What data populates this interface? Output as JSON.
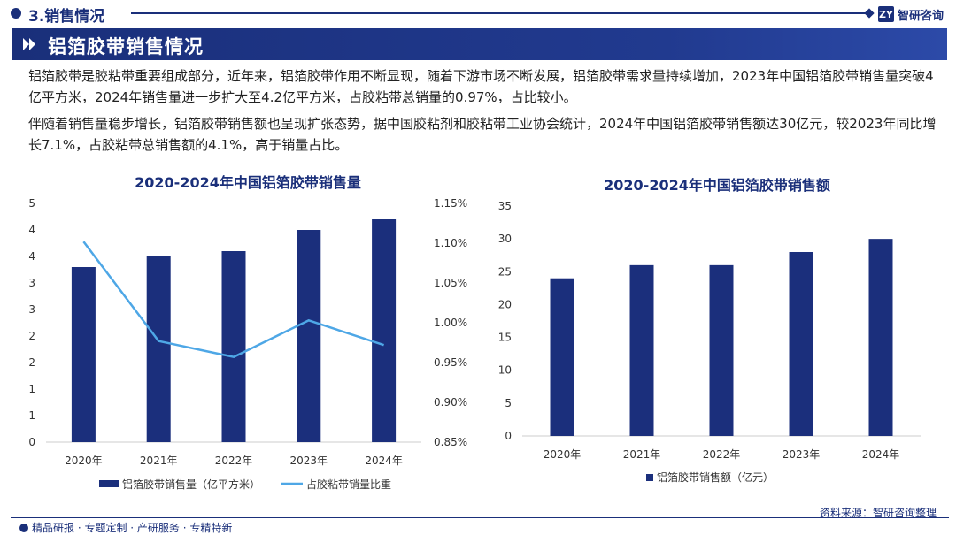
{
  "header": {
    "section_title": "3.销售情况",
    "logo_mark": "ZY",
    "logo_text": "智研咨询"
  },
  "banner": {
    "title": "铝箔胶带销售情况"
  },
  "paragraphs": [
    "铝箔胶带是胶粘带重要组成部分，近年来，铝箔胶带作用不断显现，随着下游市场不断发展，铝箔胶带需求量持续增加，2023年中国铝箔胶带销售量突破4亿平方米，2024年销售量进一步扩大至4.2亿平方米，占胶粘带总销量的0.97%，占比较小。",
    "伴随着销售量稳步增长，铝箔胶带销售额也呈现扩张态势，据中国胶粘剂和胶粘带工业协会统计，2024年中国铝箔胶带销售额达30亿元，较2023年同比增长7.1%，占胶粘带总销售额的4.1%，高于销量占比。"
  ],
  "chart_data": [
    {
      "type": "bar+line",
      "title": "2020-2024年中国铝箔胶带销售量",
      "categories": [
        "2020年",
        "2021年",
        "2022年",
        "2023年",
        "2024年"
      ],
      "series": [
        {
          "name": "铝箔胶带销售量（亿平方米）",
          "kind": "bar",
          "axis": "left",
          "values": [
            3.3,
            3.5,
            3.6,
            4.0,
            4.2
          ]
        },
        {
          "name": "占胶粘带销量比重",
          "kind": "line",
          "axis": "right",
          "values": [
            1.102,
            0.977,
            0.957,
            1.003,
            0.972
          ]
        }
      ],
      "left_axis": {
        "min": 0,
        "max": 4.5,
        "ticks": [
          0,
          0.5,
          1,
          1.5,
          2,
          2.5,
          3,
          3.5,
          4,
          4.5
        ],
        "tick_labels": [
          "0",
          "1",
          "1",
          "2",
          "2",
          "3",
          "3",
          "4",
          "4",
          "5"
        ]
      },
      "right_axis": {
        "min": 0.85,
        "max": 1.15,
        "ticks": [
          0.85,
          0.9,
          0.95,
          1.0,
          1.05,
          1.1,
          1.15
        ],
        "tick_labels": [
          "0.85%",
          "0.90%",
          "0.95%",
          "1.00%",
          "1.05%",
          "1.10%",
          "1.15%"
        ]
      },
      "legend": [
        "铝箔胶带销售量（亿平方米）",
        "占胶粘带销量比重"
      ],
      "legend_position": "bottom"
    },
    {
      "type": "bar",
      "title": "2020-2024年中国铝箔胶带销售额",
      "categories": [
        "2020年",
        "2021年",
        "2022年",
        "2023年",
        "2024年"
      ],
      "series": [
        {
          "name": "铝箔胶带销售额（亿元）",
          "values": [
            24,
            26,
            26,
            28,
            30
          ]
        }
      ],
      "y_axis": {
        "min": 0,
        "max": 35,
        "ticks": [
          0,
          5,
          10,
          15,
          20,
          25,
          30,
          35
        ]
      },
      "legend": [
        "铝箔胶带销售额（亿元）"
      ],
      "legend_position": "bottom"
    }
  ],
  "colors": {
    "bar": "#1b2f7c",
    "line": "#4ea7e6",
    "axis_text": "#333333",
    "title": "#1a2f7a"
  },
  "footer": {
    "left_text": "精品研报 · 专题定制 · 产研服务 · 专精特新",
    "source": "资料来源：智研咨询整理"
  }
}
